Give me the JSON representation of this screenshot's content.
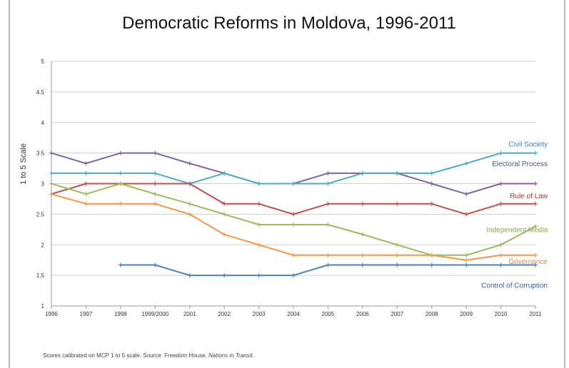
{
  "chart_data": {
    "type": "line",
    "title": "Democratic Reforms in Moldova, 1996-2011",
    "ylabel": "1 to 5 Scale",
    "xlabel": "",
    "ylim": [
      1,
      5
    ],
    "yticks": [
      "1",
      "1.5",
      "2",
      "2.5",
      "3",
      "3.5",
      "4",
      "4.5",
      "5"
    ],
    "categories": [
      "1996",
      "1997",
      "1998",
      "1999/2000",
      "2001",
      "2002",
      "2003",
      "2004",
      "2005",
      "2006",
      "2007",
      "2008",
      "2009",
      "2010",
      "2011"
    ],
    "grid": "horizontal",
    "legend": "inline labels at right end of lines",
    "series": [
      {
        "name": "Civil Society",
        "color": "#8064a2",
        "values": [
          3.5,
          3.33,
          3.5,
          3.5,
          3.33,
          3.17,
          3.0,
          3.0,
          3.17,
          3.17,
          3.17,
          3.0,
          2.83,
          3.0,
          3.0
        ]
      },
      {
        "name": "Electoral Process",
        "color": "#4bacc6",
        "values": [
          3.17,
          3.17,
          3.17,
          3.17,
          3.0,
          3.17,
          3.0,
          3.0,
          3.0,
          3.17,
          3.17,
          3.17,
          3.33,
          3.5,
          3.5
        ]
      },
      {
        "name": "Rule of Law",
        "color": "#c0504d",
        "values": [
          2.83,
          3.0,
          3.0,
          3.0,
          3.0,
          2.67,
          2.67,
          2.5,
          2.67,
          2.67,
          2.67,
          2.67,
          2.5,
          2.67,
          2.67
        ]
      },
      {
        "name": "Independent Media",
        "color": "#9bbb59",
        "values": [
          3.0,
          2.83,
          3.0,
          2.83,
          2.67,
          2.5,
          2.33,
          2.33,
          2.33,
          2.17,
          2.0,
          1.83,
          1.83,
          2.0,
          2.3
        ]
      },
      {
        "name": "Governance",
        "color": "#f79646",
        "values": [
          2.83,
          2.67,
          2.67,
          2.67,
          2.5,
          2.17,
          2.0,
          1.83,
          1.83,
          1.83,
          1.83,
          1.83,
          1.75,
          1.83,
          1.83
        ]
      },
      {
        "name": "Control of Corruption",
        "color": "#4f81bd",
        "values": [
          null,
          null,
          1.67,
          1.67,
          1.5,
          1.5,
          1.5,
          1.5,
          1.67,
          1.67,
          1.67,
          1.67,
          1.67,
          1.67,
          1.67
        ]
      }
    ]
  },
  "series_label_colors": {
    "Civil Society": "#4a7fa8",
    "Electoral Process": "#4a5e7a",
    "Rule of Law": "#a23b38",
    "Independent Media": "#8aa85a",
    "Governance": "#d7893a",
    "Control of Corruption": "#3b5e8c"
  },
  "footnote": {
    "text": "Scores calibrated on MCP 1 to 5 scale.  Source: Freedom House, ",
    "italic": "Nations in Transit."
  }
}
